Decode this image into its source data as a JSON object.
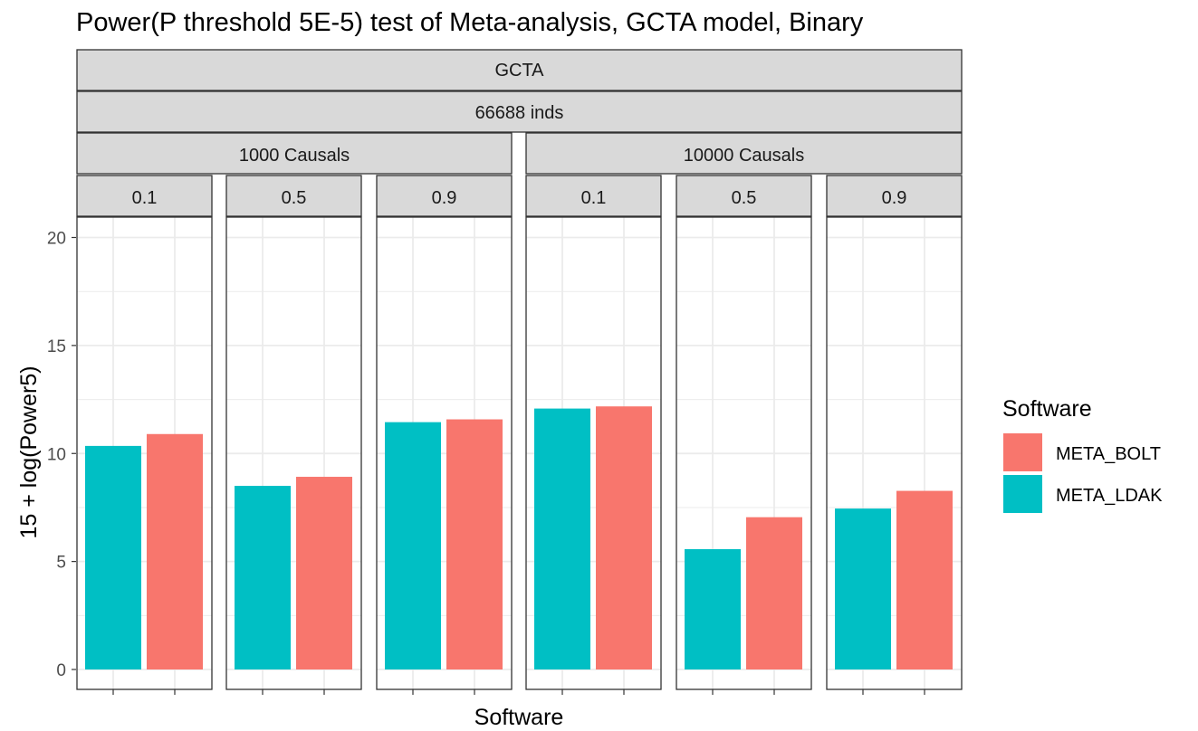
{
  "chart_data": {
    "type": "bar",
    "title": "Power(P threshold 5E-5) test of Meta-analysis, GCTA model, Binary",
    "xlabel": "Software",
    "ylabel": "15 + log(Power5)",
    "ylim": [
      0,
      21
    ],
    "yticks": [
      0,
      5,
      10,
      15,
      20
    ],
    "grid": true,
    "facet_strips": {
      "level1": "GCTA",
      "level2": "66688 inds",
      "level3": [
        "1000 Causals",
        "10000 Causals"
      ],
      "level4": [
        "0.1",
        "0.5",
        "0.9",
        "0.1",
        "0.5",
        "0.9"
      ]
    },
    "legend": {
      "title": "Software",
      "position": "right",
      "items": [
        {
          "name": "META_BOLT",
          "color": "#F8766D"
        },
        {
          "name": "META_LDAK",
          "color": "#00BFC4"
        }
      ]
    },
    "categories": [
      "META_LDAK",
      "META_BOLT"
    ],
    "colors": {
      "META_LDAK": "#00BFC4",
      "META_BOLT": "#F8766D"
    },
    "panels": [
      {
        "causals": "1000 Causals",
        "h2": "0.1",
        "values": {
          "META_LDAK": 10.35,
          "META_BOLT": 10.9
        }
      },
      {
        "causals": "1000 Causals",
        "h2": "0.5",
        "values": {
          "META_LDAK": 8.5,
          "META_BOLT": 8.92
        }
      },
      {
        "causals": "1000 Causals",
        "h2": "0.9",
        "values": {
          "META_LDAK": 11.45,
          "META_BOLT": 11.58
        }
      },
      {
        "causals": "10000 Causals",
        "h2": "0.1",
        "values": {
          "META_LDAK": 12.08,
          "META_BOLT": 12.18
        }
      },
      {
        "causals": "10000 Causals",
        "h2": "0.5",
        "values": {
          "META_LDAK": 5.57,
          "META_BOLT": 7.05
        }
      },
      {
        "causals": "10000 Causals",
        "h2": "0.9",
        "values": {
          "META_LDAK": 7.45,
          "META_BOLT": 8.27
        }
      }
    ]
  }
}
